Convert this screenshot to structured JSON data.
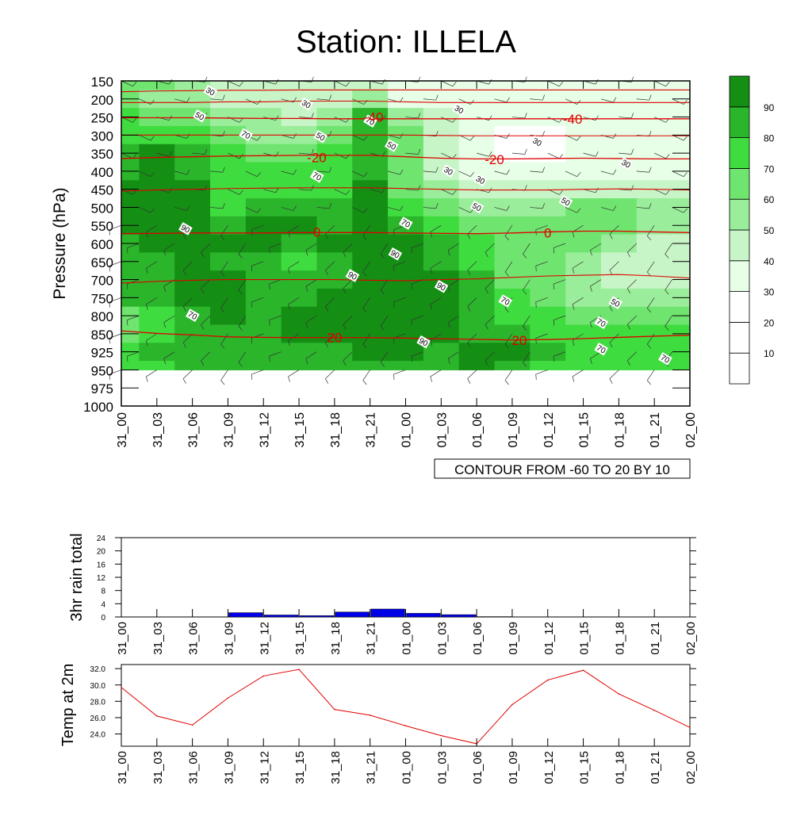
{
  "title": "Station: ILLELA",
  "colors": {
    "shade": [
      "#ffffff",
      "#ffffff",
      "#ffffff",
      "#e6ffe6",
      "#c7f5c7",
      "#9aed9a",
      "#6fe56f",
      "#3fdc3f",
      "#2bb52b",
      "#148f14"
    ],
    "temperature": "#e00000",
    "rain_bar": "#0000e6"
  },
  "chart_data": [
    {
      "id": "cross-section",
      "type": "heatmap",
      "description_fields": "relative humidity shading with temperature contours",
      "ylabel": "Pressure (hPa)",
      "xlabel": "",
      "x_ticks": [
        "31_00",
        "31_03",
        "31_06",
        "31_09",
        "31_12",
        "31_15",
        "31_18",
        "31_21",
        "01_00",
        "01_03",
        "01_06",
        "01_09",
        "01_12",
        "01_15",
        "01_18",
        "01_21",
        "02_00"
      ],
      "y_levels": [
        "150",
        "200",
        "250",
        "300",
        "350",
        "400",
        "450",
        "500",
        "550",
        "600",
        "650",
        "700",
        "750",
        "800",
        "850",
        "925",
        "950",
        "975",
        "1000"
      ],
      "data_levels": [
        "150",
        "200",
        "250",
        "300",
        "350",
        "400",
        "450",
        "500",
        "550",
        "600",
        "650",
        "700",
        "750",
        "800",
        "850",
        "925",
        "950"
      ],
      "rh_grid": [
        [
          60,
          60,
          50,
          40,
          40,
          40,
          40,
          40,
          30,
          30,
          30,
          30,
          30,
          30,
          30,
          30,
          30
        ],
        [
          60,
          50,
          50,
          40,
          40,
          40,
          40,
          50,
          30,
          30,
          30,
          30,
          30,
          30,
          30,
          30,
          30
        ],
        [
          70,
          60,
          60,
          50,
          50,
          40,
          50,
          80,
          50,
          40,
          30,
          30,
          30,
          30,
          30,
          30,
          30
        ],
        [
          70,
          70,
          70,
          60,
          50,
          50,
          60,
          80,
          60,
          40,
          30,
          20,
          20,
          30,
          30,
          30,
          30
        ],
        [
          80,
          90,
          80,
          70,
          60,
          60,
          70,
          80,
          60,
          40,
          30,
          20,
          20,
          30,
          30,
          30,
          30
        ],
        [
          80,
          90,
          80,
          70,
          70,
          70,
          70,
          80,
          60,
          40,
          30,
          30,
          30,
          30,
          30,
          30,
          30
        ],
        [
          90,
          90,
          90,
          70,
          70,
          70,
          70,
          90,
          60,
          50,
          40,
          40,
          40,
          40,
          40,
          40,
          40
        ],
        [
          90,
          100,
          90,
          70,
          80,
          80,
          80,
          90,
          70,
          60,
          50,
          50,
          50,
          60,
          60,
          50,
          50
        ],
        [
          90,
          100,
          90,
          80,
          90,
          90,
          80,
          90,
          80,
          70,
          60,
          60,
          60,
          60,
          60,
          50,
          50
        ],
        [
          80,
          90,
          90,
          90,
          90,
          80,
          90,
          90,
          90,
          80,
          70,
          60,
          60,
          60,
          50,
          40,
          40
        ],
        [
          80,
          80,
          90,
          80,
          80,
          70,
          80,
          90,
          90,
          80,
          70,
          60,
          60,
          50,
          40,
          40,
          40
        ],
        [
          80,
          80,
          90,
          90,
          80,
          80,
          80,
          100,
          100,
          90,
          80,
          60,
          60,
          50,
          40,
          40,
          40
        ],
        [
          80,
          80,
          90,
          90,
          80,
          80,
          90,
          100,
          100,
          90,
          80,
          70,
          60,
          50,
          50,
          50,
          50
        ],
        [
          60,
          70,
          80,
          90,
          80,
          90,
          100,
          100,
          100,
          100,
          80,
          70,
          70,
          60,
          60,
          60,
          60
        ],
        [
          60,
          70,
          80,
          80,
          80,
          90,
          90,
          90,
          90,
          90,
          80,
          80,
          70,
          70,
          70,
          70,
          70
        ],
        [
          70,
          80,
          80,
          80,
          80,
          80,
          80,
          90,
          90,
          80,
          90,
          90,
          80,
          70,
          70,
          70,
          70
        ],
        [
          70,
          70,
          80,
          80,
          80,
          80,
          80,
          80,
          80,
          80,
          90,
          80,
          70,
          70,
          70,
          70,
          70
        ]
      ],
      "temp_contours": [
        {
          "label": "-40",
          "hpa": [
            252,
            252,
            252,
            253,
            254,
            254,
            255,
            255,
            255,
            255,
            255,
            255,
            255,
            255,
            255,
            255,
            255
          ]
        },
        {
          "label": "-20",
          "hpa": [
            365,
            362,
            360,
            358,
            357,
            356,
            356,
            356,
            360,
            364,
            366,
            366,
            365,
            364,
            365,
            366,
            366
          ]
        },
        {
          "label": "0",
          "hpa": [
            573,
            572,
            571,
            571,
            571,
            570,
            570,
            570,
            571,
            572,
            573,
            571,
            568,
            566,
            566,
            568,
            570
          ]
        },
        {
          "label": "20",
          "hpa": [
            842,
            849,
            855,
            863,
            865,
            866,
            866,
            866,
            868,
            871,
            873,
            876,
            874,
            870,
            865,
            860,
            856
          ]
        }
      ],
      "temp_labels": [
        {
          "text": "-40",
          "time": 7.1,
          "hpa": 250
        },
        {
          "text": "-40",
          "time": 12.7,
          "hpa": 255
        },
        {
          "text": "-20",
          "time": 5.5,
          "hpa": 362
        },
        {
          "text": "-20",
          "time": 10.5,
          "hpa": 367
        },
        {
          "text": "0",
          "time": 5.5,
          "hpa": 568
        },
        {
          "text": "0",
          "time": 12.0,
          "hpa": 570
        },
        {
          "text": "20",
          "time": 6.0,
          "hpa": 866
        },
        {
          "text": "20",
          "time": 11.2,
          "hpa": 876
        }
      ],
      "extra_contours": [
        {
          "label": "",
          "hpa": [
            180,
            178,
            177,
            176,
            176,
            175,
            175,
            175,
            175,
            175,
            175,
            175,
            175,
            175,
            175,
            175,
            175
          ]
        },
        {
          "label": "",
          "hpa": [
            210,
            210,
            210,
            208,
            208,
            206,
            206,
            206,
            208,
            210,
            210,
            210,
            210,
            210,
            210,
            210,
            210
          ]
        },
        {
          "label": "",
          "hpa": [
            300,
            300,
            300,
            300,
            300,
            300,
            300,
            300,
            300,
            301,
            302,
            302,
            302,
            302,
            302,
            302,
            302
          ]
        },
        {
          "label": "",
          "hpa": [
            455,
            452,
            450,
            448,
            447,
            446,
            446,
            446,
            448,
            450,
            452,
            452,
            452,
            450,
            449,
            450,
            452
          ]
        },
        {
          "label": "",
          "hpa": [
            710,
            705,
            702,
            700,
            700,
            700,
            700,
            702,
            703,
            700,
            698,
            694,
            690,
            688,
            686,
            690,
            696
          ]
        }
      ],
      "rh_labels": [
        {
          "text": "30",
          "time": 2.5,
          "hpa": 180
        },
        {
          "text": "30",
          "time": 5.2,
          "hpa": 215
        },
        {
          "text": "50",
          "time": 2.2,
          "hpa": 248
        },
        {
          "text": "70",
          "time": 3.5,
          "hpa": 300
        },
        {
          "text": "50",
          "time": 5.6,
          "hpa": 305
        },
        {
          "text": "70",
          "time": 7.0,
          "hpa": 262
        },
        {
          "text": "50",
          "time": 7.6,
          "hpa": 330
        },
        {
          "text": "70",
          "time": 5.5,
          "hpa": 415
        },
        {
          "text": "90",
          "time": 1.8,
          "hpa": 560
        },
        {
          "text": "70",
          "time": 8.0,
          "hpa": 545
        },
        {
          "text": "30",
          "time": 9.2,
          "hpa": 400
        },
        {
          "text": "30",
          "time": 10.1,
          "hpa": 425
        },
        {
          "text": "30",
          "time": 9.5,
          "hpa": 230
        },
        {
          "text": "30",
          "time": 11.7,
          "hpa": 320
        },
        {
          "text": "50",
          "time": 10.0,
          "hpa": 500
        },
        {
          "text": "50",
          "time": 12.5,
          "hpa": 485
        },
        {
          "text": "30",
          "time": 14.2,
          "hpa": 380
        },
        {
          "text": "90",
          "time": 7.7,
          "hpa": 630
        },
        {
          "text": "90",
          "time": 6.5,
          "hpa": 690
        },
        {
          "text": "90",
          "time": 9.0,
          "hpa": 720
        },
        {
          "text": "70",
          "time": 10.8,
          "hpa": 760
        },
        {
          "text": "50",
          "time": 13.9,
          "hpa": 765
        },
        {
          "text": "70",
          "time": 13.5,
          "hpa": 820
        },
        {
          "text": "70",
          "time": 2.0,
          "hpa": 800
        },
        {
          "text": "90",
          "time": 8.5,
          "hpa": 885
        },
        {
          "text": "70",
          "time": 13.5,
          "hpa": 915
        },
        {
          "text": "70",
          "time": 15.3,
          "hpa": 935
        }
      ],
      "info_label": "CONTOUR FROM -60 TO 20 BY 10",
      "colorbar_labels": [
        "90",
        "80",
        "70",
        "60",
        "50",
        "40",
        "30",
        "20",
        "10"
      ]
    },
    {
      "id": "rain",
      "type": "bar",
      "ylabel": "3hr rain total",
      "ylim": [
        0,
        24
      ],
      "y_ticks": [
        "24",
        "20",
        "16",
        "12",
        "8",
        "4",
        "0"
      ],
      "y_tick_values": [
        24,
        20,
        16,
        12,
        8,
        4,
        0
      ],
      "x_ticks": [
        "31_00",
        "31_03",
        "31_06",
        "31_09",
        "31_12",
        "31_15",
        "31_18",
        "31_21",
        "01_00",
        "01_03",
        "01_06",
        "01_09",
        "01_12",
        "01_15",
        "01_18",
        "01_21",
        "02_00"
      ],
      "values": [
        0,
        0,
        0,
        1.3,
        0.6,
        0.4,
        1.5,
        2.4,
        1.1,
        0.7,
        0.1,
        0,
        0,
        0,
        0,
        0
      ]
    },
    {
      "id": "temp2m",
      "type": "line",
      "ylabel": "Temp at 2m",
      "ylim": [
        22.5,
        32.5
      ],
      "y_ticks": [
        "32.0",
        "30.0",
        "28.0",
        "26.0",
        "24.0"
      ],
      "y_tick_values": [
        32,
        30,
        28,
        26,
        24
      ],
      "x_ticks": [
        "31_00",
        "31_03",
        "31_06",
        "31_09",
        "31_12",
        "31_15",
        "31_18",
        "31_21",
        "01_00",
        "01_03",
        "01_06",
        "01_09",
        "01_12",
        "01_15",
        "01_18",
        "01_21",
        "02_00"
      ],
      "values": [
        29.7,
        26.2,
        25.1,
        28.4,
        31.1,
        31.9,
        27.0,
        26.3,
        25.0,
        23.8,
        22.8,
        27.6,
        30.6,
        31.8,
        28.9,
        26.9,
        24.8
      ]
    }
  ]
}
